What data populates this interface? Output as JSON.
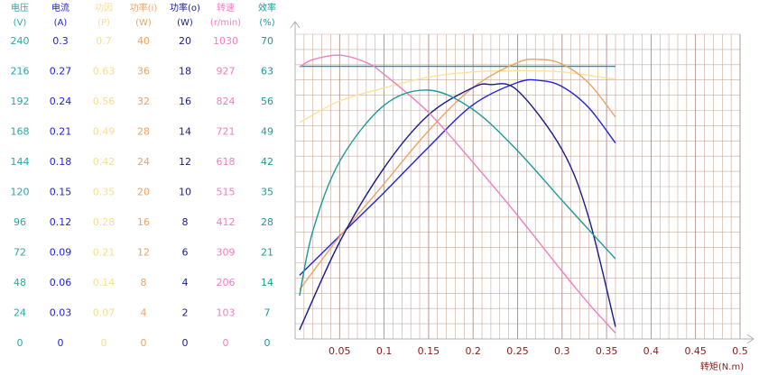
{
  "chart_data": {
    "type": "line",
    "title": "",
    "xlabel": "转矩(N.m)",
    "x_ticks": [
      0.05,
      0.1,
      0.15,
      0.2,
      0.25,
      0.3,
      0.35,
      0.4,
      0.45,
      0.5
    ],
    "xlim": [
      0,
      0.5
    ],
    "grid": true,
    "axes": [
      {
        "name": "电压",
        "unit": "(V)",
        "color": "#27a8a8",
        "max": 240,
        "ticks": [
          0,
          24,
          48,
          72,
          96,
          120,
          144,
          168,
          192,
          216,
          240
        ]
      },
      {
        "name": "电流",
        "unit": "(A)",
        "color": "#2222dd",
        "max": 0.3,
        "ticks": [
          0,
          0.03,
          0.06,
          0.09,
          0.12,
          0.15,
          0.18,
          0.21,
          0.24,
          0.27,
          0.3
        ]
      },
      {
        "name": "功因",
        "unit": "(P)",
        "color": "#f8de8a",
        "max": 0.7,
        "ticks": [
          0,
          0.07,
          0.14,
          0.21,
          0.28,
          0.35,
          0.42,
          0.49,
          0.56,
          0.63,
          0.7
        ]
      },
      {
        "name": "功率(i)",
        "unit": "(W)",
        "color": "#eca366",
        "max": 40,
        "ticks": [
          0,
          4,
          8,
          12,
          16,
          20,
          24,
          28,
          32,
          36,
          40
        ]
      },
      {
        "name": "功率(o)",
        "unit": "(W)",
        "color": "#1a1a88",
        "max": 20,
        "ticks": [
          0,
          2,
          4,
          6,
          8,
          10,
          12,
          14,
          16,
          18,
          20
        ]
      },
      {
        "name": "转速",
        "unit": "(r/min)",
        "color": "#ee7fbf",
        "max": 1030,
        "ticks": [
          0,
          103,
          206,
          309,
          412,
          515,
          618,
          721,
          824,
          927,
          1030
        ]
      },
      {
        "name": "效率",
        "unit": "(%)",
        "color": "#1a9a9a",
        "max": 70,
        "ticks": [
          0,
          7,
          14,
          21,
          28,
          35,
          42,
          49,
          56,
          63,
          70
        ]
      }
    ],
    "series": [
      {
        "axis": 0,
        "color": "#1a9a9a",
        "x": [
          0.005,
          0.36
        ],
        "y": [
          216,
          216
        ]
      },
      {
        "axis": 1,
        "color": "#2222dd",
        "x": [
          0.005,
          0.05,
          0.1,
          0.15,
          0.2,
          0.25,
          0.275,
          0.3,
          0.33,
          0.36
        ],
        "y": [
          0.063,
          0.102,
          0.145,
          0.19,
          0.232,
          0.254,
          0.256,
          0.25,
          0.229,
          0.194
        ]
      },
      {
        "axis": 2,
        "color": "#fbe29a",
        "x": [
          0.005,
          0.05,
          0.1,
          0.15,
          0.2,
          0.25,
          0.3,
          0.36
        ],
        "y": [
          0.5,
          0.55,
          0.58,
          0.605,
          0.617,
          0.62,
          0.617,
          0.6
        ]
      },
      {
        "axis": 3,
        "color": "#eca366",
        "x": [
          0.005,
          0.05,
          0.1,
          0.15,
          0.2,
          0.25,
          0.275,
          0.3,
          0.33,
          0.36
        ],
        "y": [
          6.5,
          13.5,
          20.5,
          27.5,
          33.2,
          36.5,
          36.9,
          36.3,
          33.8,
          29.3
        ]
      },
      {
        "axis": 4,
        "color": "#1a1a88",
        "x": [
          0.005,
          0.05,
          0.1,
          0.15,
          0.2,
          0.22,
          0.25,
          0.3,
          0.33,
          0.36
        ],
        "y": [
          0.6,
          6.4,
          11.3,
          14.8,
          16.6,
          16.8,
          16.4,
          12.5,
          8.0,
          0.8
        ]
      },
      {
        "axis": 5,
        "color": "#ee7fbf",
        "x": [
          0.005,
          0.02,
          0.05,
          0.08,
          0.1,
          0.15,
          0.2,
          0.25,
          0.3,
          0.33,
          0.36
        ],
        "y": [
          925,
          950,
          965,
          940,
          900,
          770,
          600,
          420,
          230,
          120,
          20
        ]
      },
      {
        "axis": 6,
        "color": "#1a9a9a",
        "x": [
          0.005,
          0.02,
          0.05,
          0.1,
          0.15,
          0.2,
          0.25,
          0.3,
          0.36
        ],
        "y": [
          10,
          25,
          41,
          54,
          57.5,
          53,
          43.5,
          32,
          18.5
        ]
      }
    ]
  }
}
